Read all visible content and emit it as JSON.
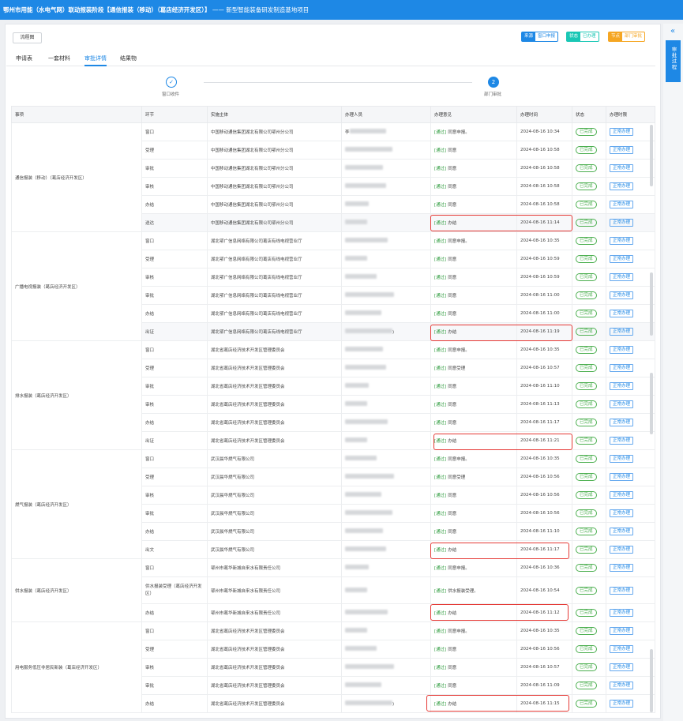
{
  "header": {
    "title": "鄂州市用能（水电气网）联动报装阶段【通信报装（移动）（葛店经济开发区）】",
    "subtitle": " —— 新型智能装备研发制造基地项目"
  },
  "toolbar": {
    "print_label": "流程图",
    "tag_source_k": "来源",
    "tag_source_v": "窗口申报",
    "tag_status_k": "状态",
    "tag_status_v": "已办理",
    "tag_node_k": "节点",
    "tag_node_v": "部门审批"
  },
  "side": {
    "label": "审批过程",
    "collapse": "«"
  },
  "tabs": [
    "申请表",
    "一套材料",
    "审批详情",
    "结果物"
  ],
  "steps": [
    {
      "no": "✓",
      "label": "窗口收件"
    },
    {
      "no": "2",
      "label": "部门审批"
    }
  ],
  "columns": [
    "事项",
    "环节",
    "实施主体",
    "办理人员",
    "办理意见",
    "办理时间",
    "状态",
    "办理时限"
  ],
  "groups": [
    {
      "item": "通信报装（移动）（葛店经济开发区）",
      "rows": [
        {
          "step": "窗口",
          "org": "中国移动通信集团湖北有限公司鄂州分公司",
          "person": "李",
          "opinion": "同意申报。",
          "time": "2024-08-16 10:34"
        },
        {
          "step": "受理",
          "org": "中国移动通信集团湖北有限公司鄂州分公司",
          "person": "",
          "opinion": "同意",
          "time": "2024-08-16 10:58"
        },
        {
          "step": "审批",
          "org": "中国移动通信集团湖北有限公司鄂州分公司",
          "person": "",
          "opinion": "同意",
          "time": "2024-08-16 10:58"
        },
        {
          "step": "审核",
          "org": "中国移动通信集团湖北有限公司鄂州分公司",
          "person": "",
          "opinion": "同意",
          "time": "2024-08-16 10:58"
        },
        {
          "step": "办结",
          "org": "中国移动通信集团湖北有限公司鄂州分公司",
          "person": "",
          "opinion": "同意",
          "time": "2024-08-16 10:58"
        },
        {
          "step": "送达",
          "org": "中国移动通信集团湖北有限公司鄂州分公司",
          "person": "",
          "opinion": "办结",
          "time": "2024-08-16 11:14"
        }
      ]
    },
    {
      "item": "广播电视报装（葛店经济开发区）",
      "rows": [
        {
          "step": "窗口",
          "org": "湖北鄂广信息网络有限公司葛店有线电视营业厅",
          "person": "",
          "opinion": "同意申报。",
          "time": "2024-08-16 10:35"
        },
        {
          "step": "受理",
          "org": "湖北鄂广信息网络有限公司葛店有线电视营业厅",
          "person": "",
          "opinion": "同意",
          "time": "2024-08-16 10:59"
        },
        {
          "step": "审核",
          "org": "湖北鄂广信息网络有限公司葛店有线电视营业厅",
          "person": "",
          "opinion": "同意",
          "time": "2024-08-16 10:59"
        },
        {
          "step": "审批",
          "org": "湖北鄂广信息网络有限公司葛店有线电视营业厅",
          "person": "",
          "opinion": "同意",
          "time": "2024-08-16 11:00"
        },
        {
          "step": "办结",
          "org": "湖北鄂广信息网络有限公司葛店有线电视营业厅",
          "person": "",
          "opinion": "同意",
          "time": "2024-08-16 11:00"
        },
        {
          "step": "出证",
          "org": "湖北鄂广信息网络有限公司葛店有线电视营业厅",
          "person": ")",
          "opinion": "办结",
          "time": "2024-08-16 11:19"
        }
      ]
    },
    {
      "item": "排水报装（葛店经济开发区）",
      "rows": [
        {
          "step": "窗口",
          "org": "湖北省葛店经济技术开发区管理委员会",
          "person": "",
          "opinion": "同意申报。",
          "time": "2024-08-16 10:35"
        },
        {
          "step": "受理",
          "org": "湖北省葛店经济技术开发区管理委员会",
          "person": "",
          "opinion": "同意受理",
          "time": "2024-08-16 10:57"
        },
        {
          "step": "审批",
          "org": "湖北省葛店经济技术开发区管理委员会",
          "person": "",
          "opinion": "同意",
          "time": "2024-08-16 11:10"
        },
        {
          "step": "审核",
          "org": "湖北省葛店经济技术开发区管理委员会",
          "person": "",
          "opinion": "同意",
          "time": "2024-08-16 11:13"
        },
        {
          "step": "办结",
          "org": "湖北省葛店经济技术开发区管理委员会",
          "person": "",
          "opinion": "同意",
          "time": "2024-08-16 11:17"
        },
        {
          "step": "出证",
          "org": "湖北省葛店经济技术开发区管理委员会",
          "person": "",
          "opinion": "办结",
          "time": "2024-08-16 11:21"
        }
      ]
    },
    {
      "item": "燃气报装（葛店经济开发区）",
      "rows": [
        {
          "step": "窗口",
          "org": "武汉晨华燃气有限公司",
          "person": "",
          "opinion": "同意申报。",
          "time": "2024-08-16 10:35"
        },
        {
          "step": "受理",
          "org": "武汉晨华燃气有限公司",
          "person": "",
          "opinion": "同意受理",
          "time": "2024-08-16 10:56"
        },
        {
          "step": "审核",
          "org": "武汉晨华燃气有限公司",
          "person": "",
          "opinion": "同意",
          "time": "2024-08-16 10:56"
        },
        {
          "step": "审批",
          "org": "武汉晨华燃气有限公司",
          "person": "",
          "opinion": "同意",
          "time": "2024-08-16 10:56"
        },
        {
          "step": "办结",
          "org": "武汉晨华燃气有限公司",
          "person": "",
          "opinion": "同意",
          "time": "2024-08-16 11:10"
        },
        {
          "step": "出文",
          "org": "武汉晨华燃气有限公司",
          "person": "",
          "opinion": "办结",
          "time": "2024-08-16 11:17"
        }
      ]
    },
    {
      "item": "供水报装（葛店经济开发区）",
      "rows": [
        {
          "step": "窗口",
          "org": "鄂州市葛华新城自来水有限责任公司",
          "person": "",
          "opinion": "同意申报。",
          "time": "2024-08-16 10:36"
        },
        {
          "step": "供水报装受理（葛店经济开发区）",
          "org": "鄂州市葛华新城自来水有限责任公司",
          "person": "",
          "opinion": "供水报装受理。",
          "time": "2024-08-16 10:54"
        },
        {
          "step": "办结",
          "org": "鄂州市葛华新城自来水有限责任公司",
          "person": "",
          "opinion": "办结",
          "time": "2024-08-16 11:12"
        }
      ]
    },
    {
      "item": "用电服务低压非居民新装（葛店经济开发区）",
      "rows": [
        {
          "step": "窗口",
          "org": "湖北省葛店经济技术开发区管理委员会",
          "person": "",
          "opinion": "同意申报。",
          "time": "2024-08-16 10:35"
        },
        {
          "step": "受理",
          "org": "湖北省葛店经济技术开发区管理委员会",
          "person": "",
          "opinion": "同意",
          "time": "2024-08-16 10:56"
        },
        {
          "step": "审核",
          "org": "湖北省葛店经济技术开发区管理委员会",
          "person": "",
          "opinion": "同意",
          "time": "2024-08-16 10:57"
        },
        {
          "step": "审批",
          "org": "湖北省葛店经济技术开发区管理委员会",
          "person": "",
          "opinion": "同意",
          "time": "2024-08-16 11:09"
        },
        {
          "step": "办结",
          "org": "湖北省葛店经济技术开发区管理委员会",
          "person": ")",
          "opinion": "办结",
          "time": "2024-08-16 11:15"
        }
      ]
    }
  ],
  "labels": {
    "passed": "[通过]",
    "status": "已完成",
    "deadline": "正常办理"
  },
  "colors": {
    "accent": "#1e88e5",
    "success": "#4caf50",
    "highlight": "#e53935"
  }
}
